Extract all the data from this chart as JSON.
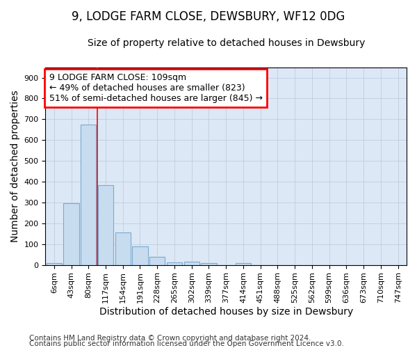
{
  "title": "9, LODGE FARM CLOSE, DEWSBURY, WF12 0DG",
  "subtitle": "Size of property relative to detached houses in Dewsbury",
  "xlabel": "Distribution of detached houses by size in Dewsbury",
  "ylabel": "Number of detached properties",
  "bar_color": "#c8dcf0",
  "bar_edge_color": "#7aaad0",
  "grid_color": "#b8c8dc",
  "bg_color": "#dce8f5",
  "categories": [
    "6sqm",
    "43sqm",
    "80sqm",
    "117sqm",
    "154sqm",
    "191sqm",
    "228sqm",
    "265sqm",
    "302sqm",
    "339sqm",
    "377sqm",
    "414sqm",
    "451sqm",
    "488sqm",
    "525sqm",
    "562sqm",
    "599sqm",
    "636sqm",
    "673sqm",
    "710sqm",
    "747sqm"
  ],
  "values": [
    8,
    295,
    675,
    383,
    155,
    88,
    38,
    13,
    14,
    10,
    0,
    10,
    0,
    0,
    0,
    0,
    0,
    0,
    0,
    0,
    0
  ],
  "ylim": [
    0,
    950
  ],
  "yticks": [
    0,
    100,
    200,
    300,
    400,
    500,
    600,
    700,
    800,
    900
  ],
  "property_line_x": 3.0,
  "property_label": "9 LODGE FARM CLOSE: 109sqm",
  "annotation_line1": "← 49% of detached houses are smaller (823)",
  "annotation_line2": "51% of semi-detached houses are larger (845) →",
  "footer_line1": "Contains HM Land Registry data © Crown copyright and database right 2024.",
  "footer_line2": "Contains public sector information licensed under the Open Government Licence v3.0.",
  "title_fontsize": 12,
  "subtitle_fontsize": 10,
  "axis_label_fontsize": 10,
  "tick_fontsize": 8,
  "footer_fontsize": 7.5,
  "annotation_fontsize": 9
}
